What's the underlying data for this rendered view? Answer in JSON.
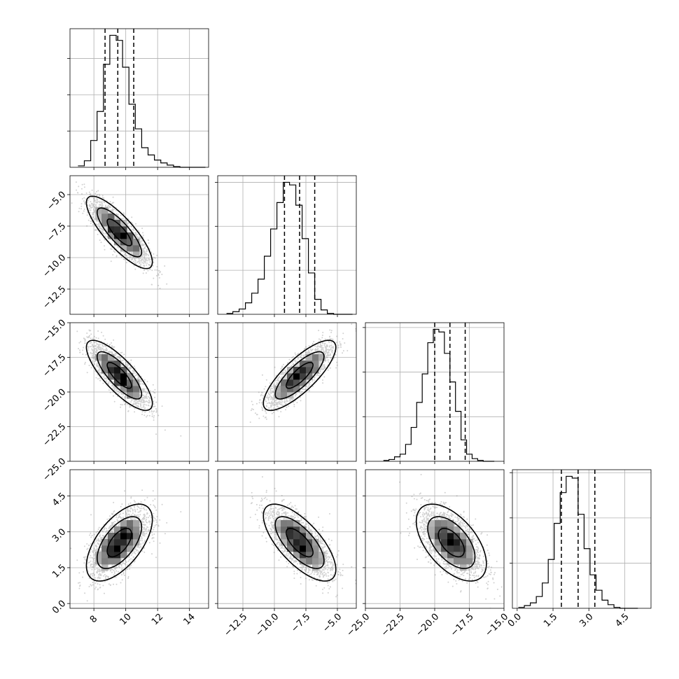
{
  "chart_data": {
    "type": "corner",
    "n_params": 4,
    "grid": true,
    "quantile_lines": "dashed",
    "params": [
      {
        "range": [
          6.5,
          15.2
        ],
        "ticks": [
          8,
          10,
          12,
          14
        ],
        "tick_labels": [
          "8",
          "10",
          "12",
          "14"
        ]
      },
      {
        "range": [
          -14.5,
          -3.5
        ],
        "ticks": [
          -12.5,
          -10.0,
          -7.5,
          -5.0
        ],
        "tick_labels": [
          "−12.5",
          "−10.0",
          "−7.5",
          "−5.0"
        ]
      },
      {
        "range": [
          -25.0,
          -15.0
        ],
        "ticks": [
          -25.0,
          -22.5,
          -20.0,
          -17.5,
          -15.0
        ],
        "tick_labels": [
          "−25.0",
          "−22.5",
          "−20.0",
          "−17.5",
          "−15.0"
        ]
      },
      {
        "range": [
          -0.2,
          5.6
        ],
        "ticks": [
          0.0,
          1.5,
          3.0,
          4.5
        ],
        "tick_labels": [
          "0.0",
          "1.5",
          "3.0",
          "4.5"
        ]
      }
    ],
    "histograms": [
      {
        "param": 0,
        "bin_start": 7.0,
        "bin_width": 0.4,
        "counts": [
          2,
          9,
          37,
          77,
          142,
          182,
          175,
          138,
          87,
          53,
          27,
          17,
          10,
          6,
          3,
          1,
          0,
          0,
          0,
          0
        ],
        "quantiles": [
          8.7,
          9.5,
          10.5
        ]
      },
      {
        "param": 1,
        "bin_start": -13.8,
        "bin_width": 0.5,
        "counts": [
          1,
          3,
          6,
          13,
          24,
          40,
          66,
          97,
          127,
          150,
          147,
          124,
          86,
          47,
          17,
          5,
          1,
          0,
          0,
          0
        ],
        "quantiles": [
          -9.2,
          -8.0,
          -6.8
        ]
      },
      {
        "param": 2,
        "bin_start": -23.7,
        "bin_width": 0.4,
        "counts": [
          1,
          2,
          5,
          8,
          19,
          38,
          66,
          98,
          133,
          148,
          145,
          121,
          89,
          56,
          24,
          8,
          3,
          1,
          0,
          0
        ],
        "quantiles": [
          -20.0,
          -18.9,
          -17.8
        ]
      },
      {
        "param": 3,
        "bin_start": 0.05,
        "bin_width": 0.25,
        "counts": [
          1,
          3,
          6,
          13,
          28,
          54,
          94,
          128,
          146,
          144,
          104,
          66,
          37,
          20,
          9,
          4,
          1,
          0,
          0,
          0
        ],
        "quantiles": [
          1.85,
          2.55,
          3.25
        ]
      }
    ],
    "pairs": [
      {
        "row": 1,
        "col": 0,
        "mean": [
          9.6,
          -8.0
        ],
        "sd": [
          0.9,
          1.25
        ],
        "corr": -0.82
      },
      {
        "row": 2,
        "col": 0,
        "mean": [
          9.6,
          -18.8
        ],
        "sd": [
          0.9,
          1.1
        ],
        "corr": -0.8
      },
      {
        "row": 2,
        "col": 1,
        "mean": [
          -8.0,
          -18.8
        ],
        "sd": [
          1.25,
          1.1
        ],
        "corr": 0.8
      },
      {
        "row": 3,
        "col": 0,
        "mean": [
          9.6,
          2.55
        ],
        "sd": [
          0.9,
          0.7
        ],
        "corr": 0.6
      },
      {
        "row": 3,
        "col": 1,
        "mean": [
          -8.0,
          2.55
        ],
        "sd": [
          1.25,
          0.7
        ],
        "corr": -0.7
      },
      {
        "row": 3,
        "col": 2,
        "mean": [
          -18.8,
          2.55
        ],
        "sd": [
          1.1,
          0.7
        ],
        "corr": -0.55
      }
    ]
  }
}
